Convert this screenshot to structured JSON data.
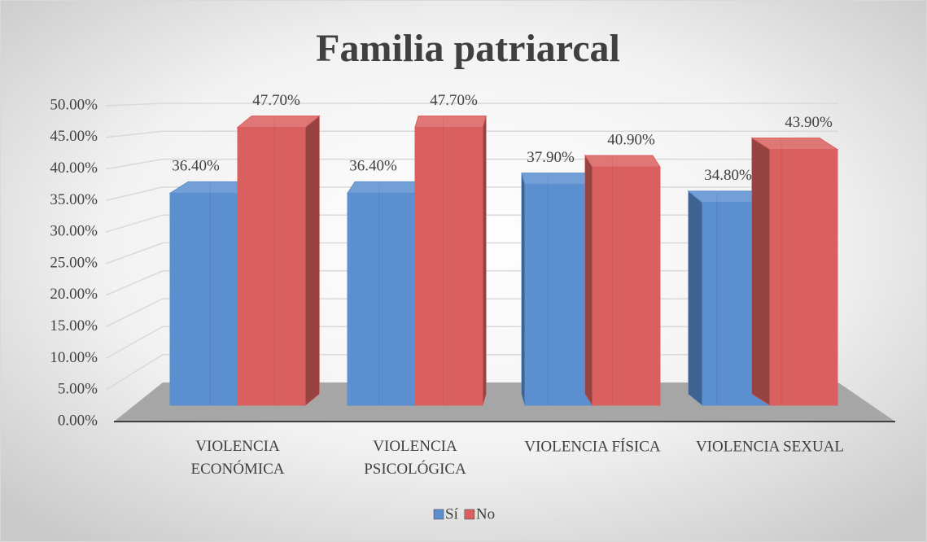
{
  "chart_data": {
    "type": "bar3d",
    "title": "Familia patriarcal",
    "categories": [
      "VIOLENCIA ECONÓMICA",
      "VIOLENCIA PSICOLÓGICA",
      "VIOLENCIA FÍSICA",
      "VIOLENCIA SEXUAL"
    ],
    "series": [
      {
        "name": "Sí",
        "color": "#5b8fd0",
        "values": [
          36.4,
          36.4,
          37.9,
          34.8
        ],
        "value_labels": [
          "36.40%",
          "36.40%",
          "37.90%",
          "34.80%"
        ]
      },
      {
        "name": "No",
        "color": "#d9605e",
        "values": [
          47.7,
          47.7,
          40.9,
          43.9
        ],
        "value_labels": [
          "47.70%",
          "47.70%",
          "40.90%",
          "43.90%"
        ]
      }
    ],
    "ylim": [
      0,
      50
    ],
    "yticks": [
      {
        "value": 0,
        "label": "0.00%"
      },
      {
        "value": 5,
        "label": "5.00%"
      },
      {
        "value": 10,
        "label": "10.00%"
      },
      {
        "value": 15,
        "label": "15.00%"
      },
      {
        "value": 20,
        "label": "20.00%"
      },
      {
        "value": 25,
        "label": "25.00%"
      },
      {
        "value": 30,
        "label": "30.00%"
      },
      {
        "value": 35,
        "label": "35.00%"
      },
      {
        "value": 40,
        "label": "40.00%"
      },
      {
        "value": 45,
        "label": "45.00%"
      },
      {
        "value": 50,
        "label": "50.00%"
      }
    ],
    "grid": true,
    "legend": "bottom"
  }
}
